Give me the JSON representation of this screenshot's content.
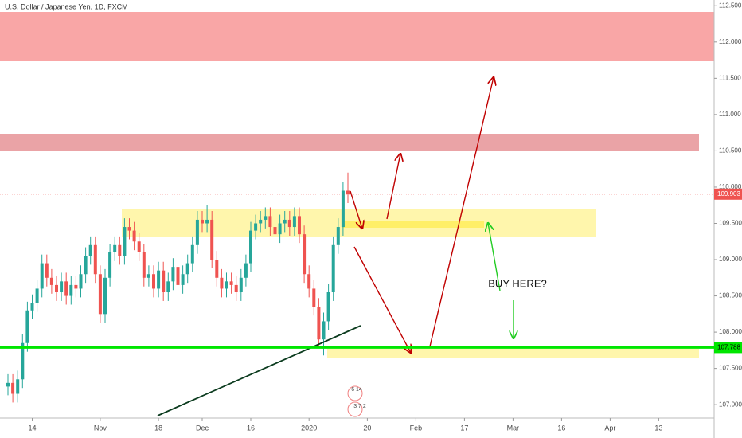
{
  "chart_data": {
    "type": "candlestick",
    "title": "U.S. Dollar / Japanese Yen, 1D, FXCM",
    "open": [
      107.25,
      107.3,
      107.15,
      107.35,
      107.85,
      108.3,
      108.4,
      108.6,
      108.95,
      108.75,
      108.65,
      108.55,
      108.7,
      108.5,
      108.65,
      108.6,
      108.8,
      109.05,
      109.2,
      108.8,
      108.25,
      108.75,
      109.1,
      109.2,
      109.05,
      109.45,
      109.4,
      109.25,
      109.1,
      108.75,
      108.8,
      108.6,
      108.85,
      108.55,
      108.7,
      108.9,
      108.65,
      108.8,
      108.95,
      109.2,
      109.55,
      109.5,
      109.55,
      109.0,
      108.75,
      108.6,
      108.7,
      108.65,
      108.55,
      108.75,
      108.95,
      109.4,
      109.5,
      109.55,
      109.6,
      109.45,
      109.35,
      109.5,
      109.55,
      109.45,
      109.6,
      109.35,
      108.8,
      108.6,
      108.35,
      107.9,
      108.15,
      108.55,
      109.2,
      109.45,
      109.95
    ],
    "high": [
      107.42,
      107.42,
      107.47,
      107.97,
      108.42,
      108.52,
      108.72,
      109.07,
      109.07,
      108.87,
      108.77,
      108.82,
      108.82,
      108.77,
      108.77,
      108.92,
      109.17,
      109.32,
      109.32,
      108.92,
      108.87,
      109.22,
      109.32,
      109.32,
      109.57,
      109.57,
      109.52,
      109.37,
      109.22,
      108.92,
      108.92,
      108.97,
      108.97,
      108.82,
      109.02,
      109.02,
      108.92,
      109.07,
      109.32,
      109.67,
      109.67,
      109.75,
      109.67,
      109.12,
      108.87,
      108.82,
      108.82,
      108.77,
      108.87,
      109.07,
      109.52,
      109.62,
      109.67,
      109.72,
      109.72,
      109.57,
      109.62,
      109.67,
      109.67,
      109.72,
      109.72,
      109.47,
      108.92,
      108.72,
      108.47,
      108.27,
      108.67,
      109.32,
      109.57,
      110.07,
      110.2
    ],
    "low": [
      107.13,
      107.03,
      107.03,
      107.23,
      107.73,
      108.18,
      108.28,
      108.48,
      108.63,
      108.53,
      108.43,
      108.43,
      108.38,
      108.38,
      108.48,
      108.48,
      108.68,
      108.93,
      108.68,
      108.13,
      108.13,
      108.63,
      108.98,
      108.93,
      108.93,
      109.28,
      109.13,
      108.98,
      108.63,
      108.63,
      108.48,
      108.48,
      108.43,
      108.43,
      108.58,
      108.53,
      108.53,
      108.68,
      108.83,
      109.08,
      109.38,
      109.38,
      108.88,
      108.63,
      108.48,
      108.48,
      108.53,
      108.43,
      108.43,
      108.63,
      108.83,
      109.28,
      109.38,
      109.43,
      109.33,
      109.23,
      109.23,
      109.38,
      109.33,
      109.33,
      109.23,
      108.68,
      108.48,
      108.23,
      107.78,
      107.68,
      108.03,
      108.43,
      109.08,
      109.33,
      109.78
    ],
    "close": [
      107.3,
      107.15,
      107.35,
      107.85,
      108.3,
      108.4,
      108.6,
      108.95,
      108.75,
      108.65,
      108.55,
      108.7,
      108.5,
      108.65,
      108.6,
      108.8,
      109.05,
      109.2,
      108.8,
      108.25,
      108.75,
      109.1,
      109.2,
      109.05,
      109.45,
      109.4,
      109.25,
      109.1,
      108.75,
      108.8,
      108.6,
      108.85,
      108.55,
      108.7,
      108.9,
      108.65,
      108.8,
      108.95,
      109.2,
      109.55,
      109.5,
      109.55,
      109.0,
      108.75,
      108.6,
      108.7,
      108.65,
      108.55,
      108.75,
      108.95,
      109.4,
      109.5,
      109.55,
      109.6,
      109.45,
      109.35,
      109.5,
      109.55,
      109.45,
      109.6,
      109.35,
      108.8,
      108.6,
      108.35,
      107.9,
      108.15,
      108.55,
      109.2,
      109.45,
      109.95,
      109.9
    ],
    "up_color": "#26a69a",
    "down_color": "#ef5350",
    "ylim": [
      106.87,
      112.58
    ],
    "yticks": [
      {
        "value": 107,
        "label": "107.000"
      },
      {
        "value": 107.5,
        "label": "107.500"
      },
      {
        "value": 108,
        "label": "108.000"
      },
      {
        "value": 108.5,
        "label": "108.500"
      },
      {
        "value": 109,
        "label": "109.000"
      },
      {
        "value": 109.5,
        "label": "109.500"
      },
      {
        "value": 110,
        "label": "110.000"
      },
      {
        "value": 110.5,
        "label": "110.500"
      },
      {
        "value": 111,
        "label": "111.000"
      },
      {
        "value": 111.5,
        "label": "111.500"
      },
      {
        "value": 112,
        "label": "112.000"
      },
      {
        "value": 112.5,
        "label": "112.500"
      }
    ],
    "xticks": [
      {
        "value": 5,
        "label": "14"
      },
      {
        "value": 19,
        "label": "Nov"
      },
      {
        "value": 31,
        "label": "18"
      },
      {
        "value": 40,
        "label": "Dec"
      },
      {
        "value": 50,
        "label": "16"
      },
      {
        "value": 62,
        "label": "2020"
      },
      {
        "value": 74,
        "label": "20"
      },
      {
        "value": 84,
        "label": "Feb"
      },
      {
        "value": 94,
        "label": "17"
      },
      {
        "value": 104,
        "label": "Mar"
      },
      {
        "value": 114,
        "label": "16"
      },
      {
        "value": 124,
        "label": "Apr"
      },
      {
        "value": 134,
        "label": "13"
      }
    ],
    "current_price": 109.903,
    "support_level": 107.788,
    "annotation": "BUY HERE?",
    "event_labels": [
      "6 14",
      "3 7 2"
    ]
  }
}
